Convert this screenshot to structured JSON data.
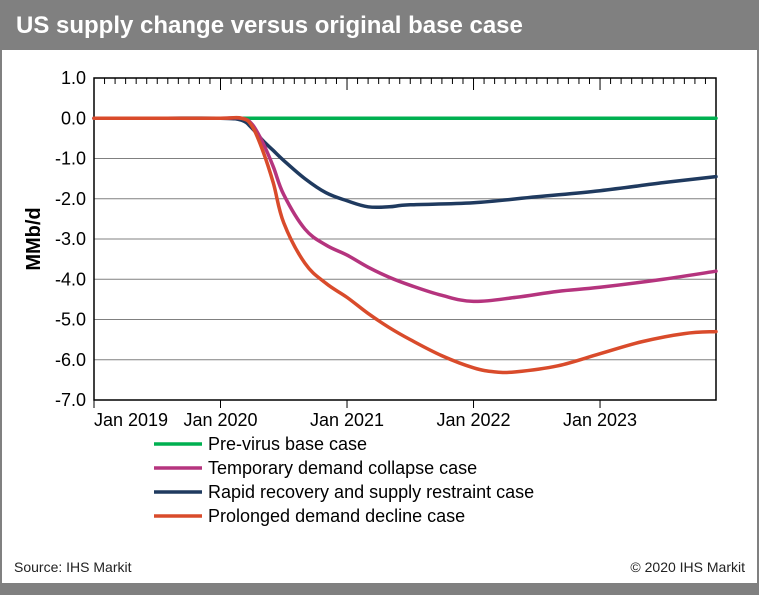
{
  "title": "US supply change versus original base case",
  "footer_left": "Source: IHS Markit",
  "footer_right": "© 2020 IHS Markit",
  "chart": {
    "type": "line",
    "ylabel": "MMb/d",
    "background_color": "#ffffff",
    "grid_color": "#808080",
    "frame_color": "#000000",
    "title_bg": "#808080",
    "title_color": "#ffffff",
    "title_fontsize": 24,
    "label_fontsize": 20,
    "tick_fontsize": 18,
    "legend_fontsize": 18,
    "line_width": 3.5,
    "x_domain_months": [
      0,
      59
    ],
    "ylim": [
      -7,
      1
    ],
    "ytick_step": 1,
    "x_major_positions": [
      0,
      12,
      24,
      36,
      48
    ],
    "x_major_labels": [
      "Jan 2019",
      "Jan 2020",
      "Jan 2021",
      "Jan 2022",
      "Jan 2023"
    ],
    "x_minor_ticks": true,
    "legend_items": [
      {
        "label": "Pre-virus base case",
        "color": "#00b050"
      },
      {
        "label": "Temporary demand collapse case",
        "color": "#b5347e"
      },
      {
        "label": "Rapid recovery and supply restraint case",
        "color": "#1f3a5f"
      },
      {
        "label": "Prolonged demand decline case",
        "color": "#d94b2b"
      }
    ],
    "series": [
      {
        "name": "Pre-virus base case",
        "color": "#00b050",
        "x": [
          0,
          6,
          12,
          18,
          24,
          30,
          36,
          42,
          48,
          54,
          59
        ],
        "y": [
          0,
          0,
          0,
          0,
          0,
          0,
          0,
          0,
          0,
          0,
          0
        ]
      },
      {
        "name": "Rapid recovery and supply restraint case",
        "color": "#1f3a5f",
        "x": [
          0,
          6,
          12,
          14,
          15,
          16,
          17,
          18,
          20,
          22,
          24,
          26,
          28,
          30,
          36,
          42,
          48,
          54,
          59
        ],
        "y": [
          0,
          0,
          0,
          -0.05,
          -0.25,
          -0.55,
          -0.8,
          -1.05,
          -1.5,
          -1.85,
          -2.05,
          -2.2,
          -2.2,
          -2.15,
          -2.1,
          -1.95,
          -1.8,
          -1.6,
          -1.45
        ]
      },
      {
        "name": "Temporary demand collapse case",
        "color": "#b5347e",
        "x": [
          0,
          6,
          12,
          14,
          15,
          16,
          17,
          18,
          20,
          22,
          24,
          26,
          28,
          30,
          33,
          36,
          40,
          44,
          48,
          54,
          59
        ],
        "y": [
          0,
          0,
          0,
          0,
          -0.15,
          -0.6,
          -1.2,
          -1.9,
          -2.75,
          -3.15,
          -3.4,
          -3.7,
          -3.95,
          -4.15,
          -4.4,
          -4.55,
          -4.45,
          -4.3,
          -4.2,
          -4.0,
          -3.8
        ]
      },
      {
        "name": "Prolonged demand decline case",
        "color": "#d94b2b",
        "x": [
          0,
          6,
          12,
          14,
          15,
          16,
          17,
          18,
          20,
          22,
          24,
          26,
          28,
          30,
          33,
          36,
          38,
          40,
          44,
          48,
          52,
          56,
          59
        ],
        "y": [
          0,
          0,
          0,
          0,
          -0.2,
          -0.8,
          -1.6,
          -2.6,
          -3.6,
          -4.1,
          -4.45,
          -4.85,
          -5.2,
          -5.5,
          -5.9,
          -6.2,
          -6.3,
          -6.3,
          -6.15,
          -5.85,
          -5.55,
          -5.35,
          -5.3
        ]
      }
    ]
  }
}
